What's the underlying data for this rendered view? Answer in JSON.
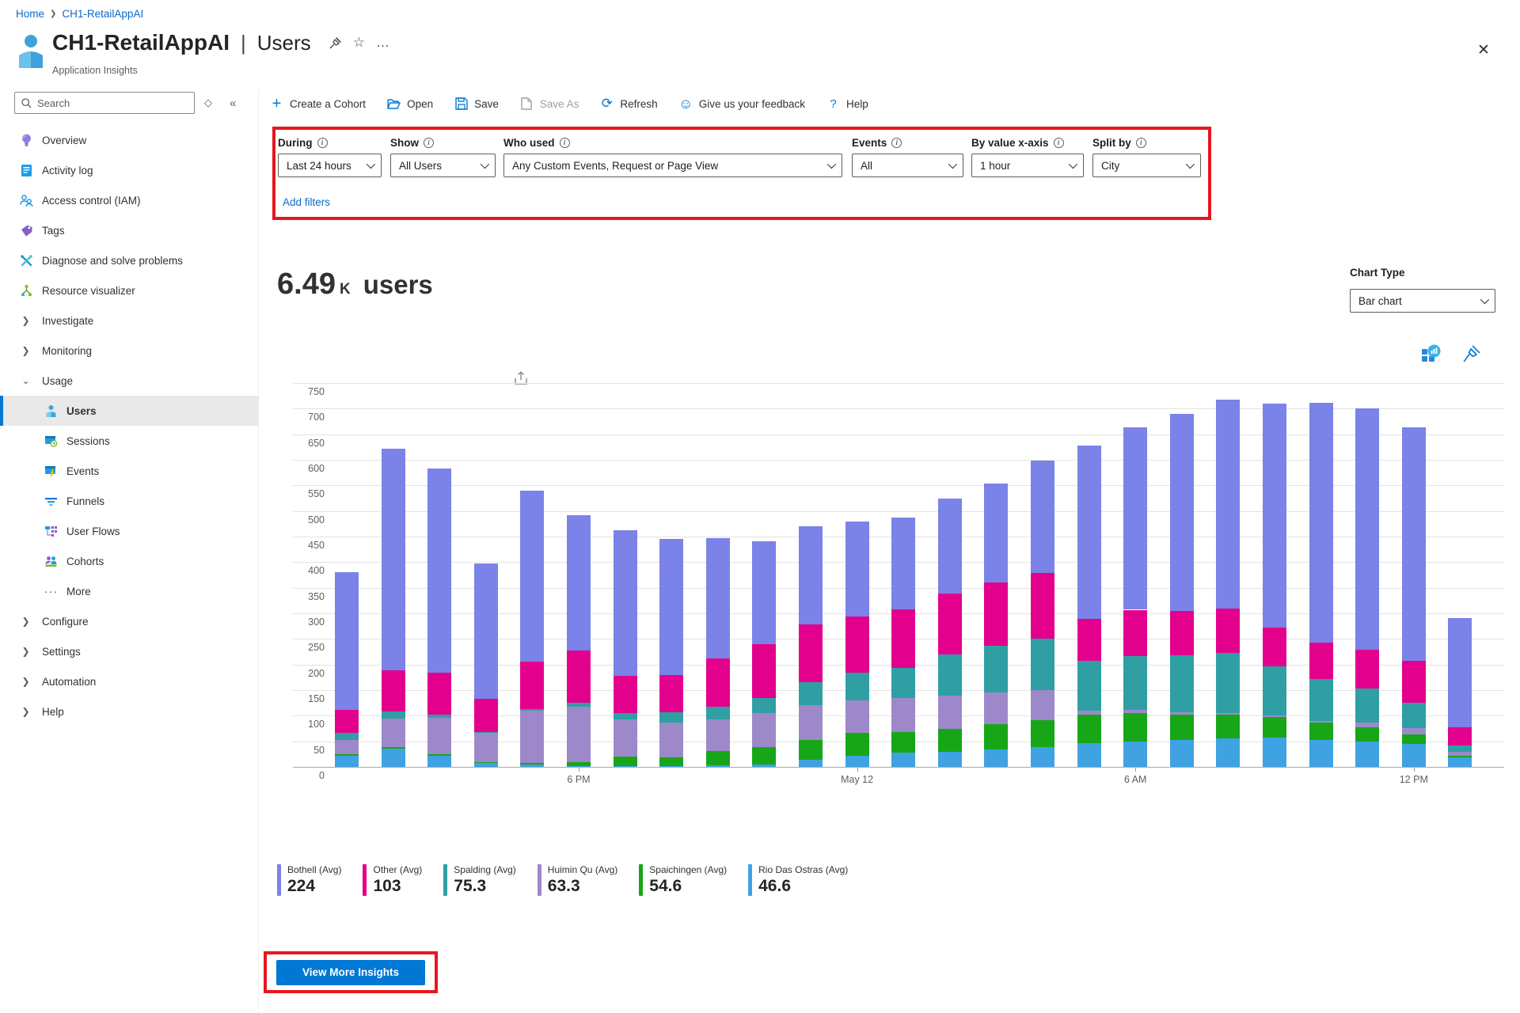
{
  "breadcrumb": {
    "items": [
      "Home",
      "CH1-RetailAppAI"
    ]
  },
  "header": {
    "title_resource": "CH1-RetailAppAI",
    "title_separator": "|",
    "title_page": "Users",
    "subtitle": "Application Insights"
  },
  "sidebar": {
    "search_placeholder": "Search",
    "items": [
      {
        "label": "Overview"
      },
      {
        "label": "Activity log"
      },
      {
        "label": "Access control (IAM)"
      },
      {
        "label": "Tags"
      },
      {
        "label": "Diagnose and solve problems"
      },
      {
        "label": "Resource visualizer"
      },
      {
        "label": "Investigate"
      },
      {
        "label": "Monitoring"
      },
      {
        "label": "Usage"
      },
      {
        "label": "Users"
      },
      {
        "label": "Sessions"
      },
      {
        "label": "Events"
      },
      {
        "label": "Funnels"
      },
      {
        "label": "User Flows"
      },
      {
        "label": "Cohorts"
      },
      {
        "label": "More"
      },
      {
        "label": "Configure"
      },
      {
        "label": "Settings"
      },
      {
        "label": "Automation"
      },
      {
        "label": "Help"
      }
    ]
  },
  "toolbar": {
    "create_cohort": "Create a Cohort",
    "open": "Open",
    "save": "Save",
    "save_as": "Save As",
    "refresh": "Refresh",
    "feedback": "Give us your feedback",
    "help": "Help"
  },
  "filters": {
    "fields": [
      {
        "label": "During",
        "value": "Last 24 hours"
      },
      {
        "label": "Show",
        "value": "All Users"
      },
      {
        "label": "Who used",
        "value": "Any Custom Events, Request or Page View"
      },
      {
        "label": "Events",
        "value": "All"
      },
      {
        "label": "By value x-axis",
        "value": "1 hour"
      },
      {
        "label": "Split by",
        "value": "City"
      }
    ],
    "add_filters": "Add filters"
  },
  "main": {
    "metric_value": "6.49",
    "metric_unit": "K",
    "metric_label": "users",
    "chart_type_label": "Chart Type",
    "chart_type_value": "Bar chart",
    "view_more_label": "View More Insights"
  },
  "icons": {
    "plus": "+",
    "refresh": "⟳",
    "smiley": "☺",
    "question": "?",
    "chevron_right": "❯",
    "chevron_down": "⌄",
    "dots": "···",
    "ellipsis": "…",
    "diamond": "◇",
    "collapse": "«",
    "star": "☆",
    "close": "✕",
    "search": "⌕",
    "info": "i"
  },
  "colors": {
    "accent": "#0078d4",
    "annotation_red": "#e8161d",
    "link_blue": "#0b69cb"
  },
  "chart_data": {
    "type": "bar",
    "stacked": true,
    "title": "Users over the last 24 hours split by City",
    "ylim": [
      0,
      750
    ],
    "ytick_step": 50,
    "grid": true,
    "legend_position": "bottom",
    "x_axis_labels": [
      {
        "index": 5,
        "label": "6 PM"
      },
      {
        "index": 11,
        "label": "May 12"
      },
      {
        "index": 17,
        "label": "6 AM"
      },
      {
        "index": 23,
        "label": "12 PM"
      }
    ],
    "series": [
      {
        "name": "Rio Das Ostras (Avg)",
        "color": "#3fa2e2",
        "values": [
          22,
          35,
          22,
          7,
          4,
          2,
          2,
          2,
          3,
          5,
          14,
          22,
          28,
          30,
          34,
          38,
          46,
          50,
          52,
          55,
          57,
          52,
          50,
          45,
          18
        ]
      },
      {
        "name": "Spaichingen (Avg)",
        "color": "#17a617",
        "values": [
          3,
          4,
          3,
          2,
          3,
          8,
          18,
          16,
          28,
          34,
          38,
          44,
          40,
          45,
          50,
          54,
          56,
          55,
          50,
          47,
          40,
          34,
          28,
          18,
          4
        ]
      },
      {
        "name": "Huimin Qu (Avg)",
        "color": "#9d89c9",
        "values": [
          28,
          55,
          71,
          57,
          103,
          108,
          73,
          68,
          62,
          66,
          68,
          64,
          66,
          64,
          62,
          58,
          8,
          7,
          4,
          3,
          3,
          4,
          9,
          13,
          8
        ]
      },
      {
        "name": "Spalding (Avg)",
        "color": "#2f9fa4",
        "values": [
          13,
          14,
          6,
          2,
          3,
          7,
          12,
          20,
          25,
          30,
          45,
          54,
          60,
          80,
          90,
          100,
          98,
          105,
          112,
          118,
          96,
          82,
          66,
          50,
          12
        ]
      },
      {
        "name": "Other (Avg)",
        "color": "#e3008c",
        "values": [
          46,
          80,
          82,
          65,
          92,
          103,
          73,
          74,
          94,
          104,
          113,
          110,
          113,
          119,
          124,
          129,
          81,
          90,
          86,
          86,
          76,
          71,
          76,
          81,
          36
        ]
      },
      {
        "name": "Bothell (Avg)",
        "color": "#7b82e8",
        "values": [
          268,
          434,
          399,
          265,
          335,
          264,
          284,
          265,
          235,
          201,
          192,
          186,
          180,
          187,
          193,
          219,
          339,
          356,
          386,
          409,
          438,
          469,
          471,
          456,
          212
        ]
      }
    ],
    "legend": [
      {
        "name": "Bothell (Avg)",
        "value": "224",
        "color": "#7b82e8"
      },
      {
        "name": "Other (Avg)",
        "value": "103",
        "color": "#e3008c"
      },
      {
        "name": "Spalding (Avg)",
        "value": "75.3",
        "color": "#2f9fa4"
      },
      {
        "name": "Huimin Qu (Avg)",
        "value": "63.3",
        "color": "#9d89c9"
      },
      {
        "name": "Spaichingen (Avg)",
        "value": "54.6",
        "color": "#17a617"
      },
      {
        "name": "Rio Das Ostras (Avg)",
        "value": "46.6",
        "color": "#3fa2e2"
      }
    ]
  }
}
